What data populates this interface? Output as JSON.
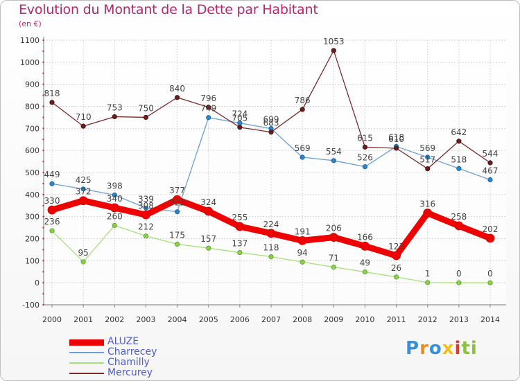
{
  "header": {
    "title": "Evolution du Montant de la Dette par Habitant",
    "unit": "(en €)"
  },
  "chart_data": {
    "type": "line",
    "title": "Evolution du Montant de la Dette par Habitant",
    "ylabel": "(en €)",
    "xlabel": "",
    "x": [
      "2000",
      "2001",
      "2002",
      "2003",
      "2004",
      "2005",
      "2006",
      "2007",
      "2008",
      "2009",
      "2010",
      "2011",
      "2012",
      "2013",
      "2014"
    ],
    "ylim": [
      -100,
      1100
    ],
    "yticks": [
      "-100",
      "0",
      "100",
      "200",
      "300",
      "400",
      "500",
      "600",
      "700",
      "800",
      "900",
      "1000",
      "1100"
    ],
    "grid": true,
    "legend_position": "bottom-left",
    "series": [
      {
        "name": "ALUZE",
        "color": "#ee0000",
        "values": [
          330,
          372,
          340,
          308,
          377,
          324,
          255,
          224,
          191,
          206,
          166,
          123,
          316,
          258,
          202
        ],
        "labels": [
          "330",
          "372",
          "340",
          "308",
          "377",
          "324",
          "255",
          "224",
          "191",
          "206",
          "166",
          "123",
          "316",
          "258",
          "202"
        ]
      },
      {
        "name": "Charrecey",
        "color": "#6ea0d6",
        "values": [
          449,
          425,
          398,
          339,
          322,
          749,
          724,
          699,
          569,
          554,
          526,
          618,
          569,
          518,
          467
        ],
        "labels": [
          "449",
          "425",
          "398",
          "339",
          "322",
          "749",
          "724",
          "699",
          "569",
          "554",
          "526",
          "618",
          "569",
          "518",
          "467"
        ]
      },
      {
        "name": "Chamilly",
        "color": "#a6e07c",
        "values": [
          236,
          95,
          260,
          212,
          175,
          157,
          137,
          118,
          94,
          71,
          49,
          26,
          1,
          0,
          0
        ],
        "labels": [
          "236",
          "95",
          "260",
          "212",
          "175",
          "157",
          "137",
          "118",
          "94",
          "71",
          "49",
          "26",
          "1",
          "0",
          "0"
        ]
      },
      {
        "name": "Mercurey",
        "color": "#7a2a2a",
        "values": [
          818,
          710,
          753,
          750,
          840,
          796,
          705,
          683,
          786,
          1053,
          615,
          610,
          517,
          642,
          544
        ],
        "labels": [
          "818",
          "710",
          "753",
          "750",
          "840",
          "796",
          "705",
          "683",
          "786",
          "1053",
          "615",
          "610",
          "517",
          "642",
          "544"
        ]
      }
    ]
  },
  "logo": {
    "letters": [
      "P",
      "r",
      "o",
      "x",
      "i",
      "t",
      "i"
    ],
    "colors": [
      "#3a8fd8",
      "#f08a1a",
      "#3a8fd8",
      "#f0c01a",
      "#e23a2a",
      "#8ac43f",
      "#8ac43f"
    ]
  }
}
